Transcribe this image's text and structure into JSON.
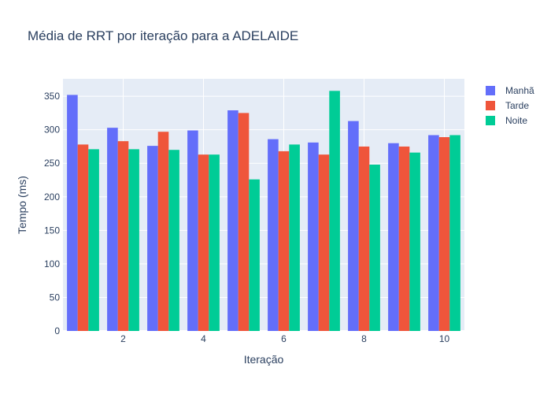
{
  "chart_data": {
    "type": "bar",
    "title": "Média de RRT por iteração para a ADELAIDE",
    "xlabel": "Iteração",
    "ylabel": "Tempo (ms)",
    "x": [
      1,
      2,
      3,
      4,
      5,
      6,
      7,
      8,
      9,
      10
    ],
    "x_ticks": [
      2,
      4,
      6,
      8,
      10
    ],
    "y_ticks": [
      0,
      50,
      100,
      150,
      200,
      250,
      300,
      350
    ],
    "xlim": [
      0.5,
      10.5
    ],
    "ylim": [
      0,
      376
    ],
    "grid": true,
    "legend_position": "top-right",
    "series": [
      {
        "name": "Manhã",
        "color": "#636efa",
        "values": [
          352,
          303,
          276,
          299,
          329,
          286,
          281,
          313,
          280,
          292
        ]
      },
      {
        "name": "Tarde",
        "color": "#ef553b",
        "values": [
          278,
          283,
          297,
          263,
          325,
          268,
          263,
          275,
          275,
          289
        ]
      },
      {
        "name": "Noite",
        "color": "#00cc96",
        "values": [
          271,
          271,
          270,
          263,
          226,
          278,
          358,
          248,
          266,
          292
        ]
      }
    ]
  }
}
